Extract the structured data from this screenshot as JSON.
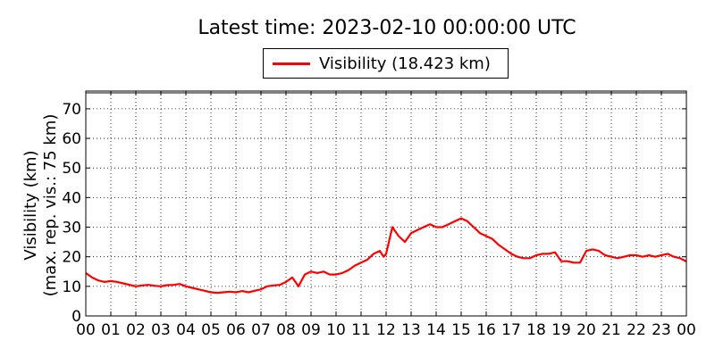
{
  "chart_data": {
    "type": "line",
    "title": "Latest time: 2023-02-10 00:00:00 UTC",
    "xlabel": "",
    "ylabel_line1": "Visibility (km)",
    "ylabel_line2": "(max. rep. vis.: 75 km)",
    "xlim": [
      0,
      24
    ],
    "ylim": [
      0,
      76
    ],
    "yticks": [
      0,
      10,
      20,
      30,
      40,
      50,
      60,
      70
    ],
    "xtick_labels": [
      "00",
      "01",
      "02",
      "03",
      "04",
      "05",
      "06",
      "07",
      "08",
      "09",
      "10",
      "11",
      "12",
      "13",
      "14",
      "15",
      "16",
      "17",
      "18",
      "19",
      "20",
      "21",
      "22",
      "23",
      "00"
    ],
    "grid": true,
    "legend": "top-center",
    "series": [
      {
        "name": "Visibility (18.423 km)",
        "color": "#ff0000",
        "x": [
          0,
          0.25,
          0.5,
          0.75,
          1.0,
          1.25,
          1.5,
          1.75,
          2.0,
          2.25,
          2.5,
          2.75,
          3.0,
          3.25,
          3.5,
          3.75,
          4.0,
          4.25,
          4.5,
          4.75,
          5.0,
          5.25,
          5.5,
          5.75,
          6.0,
          6.25,
          6.5,
          6.75,
          7.0,
          7.25,
          7.5,
          7.75,
          8.0,
          8.25,
          8.5,
          8.75,
          9.0,
          9.25,
          9.5,
          9.75,
          10.0,
          10.25,
          10.5,
          10.75,
          11.0,
          11.25,
          11.5,
          11.75,
          11.9,
          12.0,
          12.25,
          12.5,
          12.75,
          13.0,
          13.25,
          13.5,
          13.75,
          14.0,
          14.25,
          14.5,
          14.75,
          15.0,
          15.25,
          15.5,
          15.75,
          16.0,
          16.25,
          16.5,
          16.75,
          17.0,
          17.25,
          17.5,
          17.75,
          18.0,
          18.25,
          18.5,
          18.75,
          19.0,
          19.25,
          19.5,
          19.75,
          20.0,
          20.25,
          20.5,
          20.75,
          21.0,
          21.25,
          21.5,
          21.75,
          22.0,
          22.25,
          22.5,
          22.75,
          23.0,
          23.25,
          23.5,
          23.75,
          24.0
        ],
        "y": [
          14.5,
          13,
          12,
          11.5,
          11.8,
          11.5,
          11,
          10.5,
          10,
          10.3,
          10.5,
          10.2,
          10,
          10.4,
          10.5,
          10.8,
          10,
          9.5,
          9,
          8.5,
          8,
          7.8,
          8,
          8.2,
          8,
          8.4,
          8,
          8.5,
          9,
          10,
          10.3,
          10.5,
          11.5,
          13,
          10,
          14,
          15,
          14.5,
          15,
          14,
          14,
          14.5,
          15.5,
          17,
          18,
          19,
          21,
          22,
          20,
          21,
          30,
          27,
          25,
          28,
          29,
          30,
          31,
          30,
          30,
          31,
          32,
          33,
          32,
          30,
          28,
          27,
          26,
          24,
          22.5,
          21,
          20,
          19.5,
          19.5,
          20.5,
          21,
          21,
          21.5,
          18.5,
          18.5,
          18,
          18,
          22,
          22.5,
          22,
          20.5,
          20,
          19.5,
          20,
          20.5,
          20.5,
          20,
          20.5,
          20,
          20.5,
          21,
          20,
          19.5,
          18.4
        ]
      }
    ]
  }
}
